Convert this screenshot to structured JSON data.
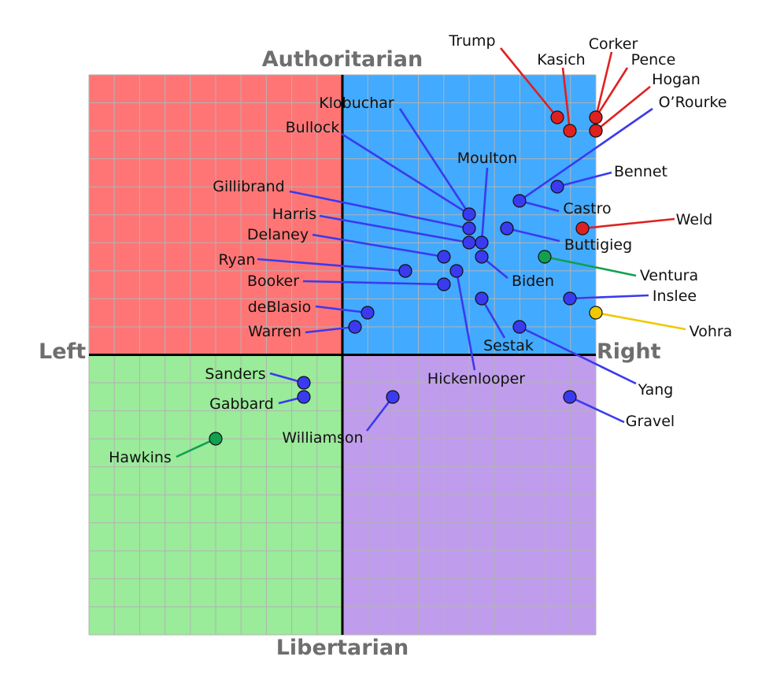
{
  "chart_data": {
    "type": "scatter",
    "title": "",
    "axis_labels": {
      "top": "Authoritarian",
      "bottom": "Libertarian",
      "left": "Left",
      "right": "Right"
    },
    "xlim": [
      -10,
      10
    ],
    "ylim": [
      -10,
      10
    ],
    "grid": true,
    "quadrant_colors": {
      "top_left": "#ff7575",
      "top_right": "#42aaff",
      "bottom_left": "#9aeb9a",
      "bottom_right": "#c09ced"
    },
    "party_colors": {
      "Republican": "#e02020",
      "Democrat": "#3a3aee",
      "Green": "#10a050",
      "Libertarian": "#f0c800"
    },
    "points": [
      {
        "name": "Trump",
        "x": 8.5,
        "y": 8.5,
        "party": "Republican"
      },
      {
        "name": "Kasich",
        "x": 9.0,
        "y": 8.0,
        "party": "Republican"
      },
      {
        "name": "Corker",
        "x": 10.0,
        "y": 8.5,
        "party": "Republican"
      },
      {
        "name": "Pence",
        "x": 10.0,
        "y": 8.0,
        "party": "Republican"
      },
      {
        "name": "Hogan",
        "x": 10.0,
        "y": 8.0,
        "party": "Republican"
      },
      {
        "name": "O’Rourke",
        "x": 7.0,
        "y": 5.5,
        "party": "Democrat"
      },
      {
        "name": "Bennet",
        "x": 8.5,
        "y": 6.0,
        "party": "Democrat"
      },
      {
        "name": "Castro",
        "x": 6.5,
        "y": 4.5,
        "party": "Democrat"
      },
      {
        "name": "Buttigieg",
        "x": 6.5,
        "y": 4.5,
        "party": "Democrat"
      },
      {
        "name": "Weld",
        "x": 9.5,
        "y": 4.5,
        "party": "Republican"
      },
      {
        "name": "Ventura",
        "x": 8.0,
        "y": 3.5,
        "party": "Green"
      },
      {
        "name": "Inslee",
        "x": 9.0,
        "y": 2.0,
        "party": "Democrat"
      },
      {
        "name": "Vohra",
        "x": 10.0,
        "y": 1.5,
        "party": "Libertarian"
      },
      {
        "name": "Yang",
        "x": 7.0,
        "y": 1.0,
        "party": "Democrat"
      },
      {
        "name": "Gravel",
        "x": 9.0,
        "y": -3.0,
        "party": "Democrat"
      },
      {
        "name": "Sestak",
        "x": 5.5,
        "y": 2.0,
        "party": "Democrat"
      },
      {
        "name": "Hickenlooper",
        "x": 4.5,
        "y": 3.0,
        "party": "Democrat"
      },
      {
        "name": "Biden",
        "x": 5.5,
        "y": 3.5,
        "party": "Democrat"
      },
      {
        "name": "Moulton",
        "x": 5.5,
        "y": 4.0,
        "party": "Democrat"
      },
      {
        "name": "Klobuchar",
        "x": 5.0,
        "y": 5.0,
        "party": "Democrat"
      },
      {
        "name": "Bullock",
        "x": 5.0,
        "y": 4.5,
        "party": "Democrat"
      },
      {
        "name": "Gillibrand",
        "x": 5.0,
        "y": 4.0,
        "party": "Democrat"
      },
      {
        "name": "Harris",
        "x": 4.0,
        "y": 3.5,
        "party": "Democrat"
      },
      {
        "name": "Delaney",
        "x": 2.5,
        "y": 3.0,
        "party": "Democrat"
      },
      {
        "name": "Ryan",
        "x": 4.0,
        "y": 2.5,
        "party": "Democrat"
      },
      {
        "name": "Booker",
        "x": 4.0,
        "y": 2.5,
        "party": "Democrat"
      },
      {
        "name": "deBlasio",
        "x": 1.0,
        "y": 1.5,
        "party": "Democrat"
      },
      {
        "name": "Warren",
        "x": 0.5,
        "y": 1.0,
        "party": "Democrat"
      },
      {
        "name": "Sanders",
        "x": -1.5,
        "y": -1.0,
        "party": "Democrat"
      },
      {
        "name": "Gabbard",
        "x": -1.5,
        "y": -1.5,
        "party": "Democrat"
      },
      {
        "name": "Williamson",
        "x": 2.0,
        "y": -1.5,
        "party": "Democrat"
      },
      {
        "name": "Hawkins",
        "x": -5.0,
        "y": -3.0,
        "party": "Green"
      }
    ]
  }
}
